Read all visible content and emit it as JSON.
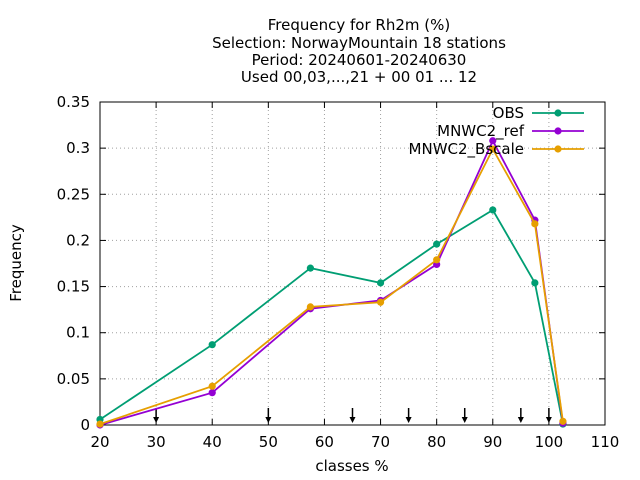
{
  "chart_data": {
    "type": "line",
    "title_lines": [
      "Frequency  for Rh2m (%)",
      "Selection: NorwayMountain     18 stations",
      "Period: 20240601-20240630",
      "Used 00,03,...,21 + 00 01 ... 12"
    ],
    "xlabel": "classes %",
    "ylabel": "Frequency",
    "xlim": [
      20,
      110
    ],
    "ylim": [
      0,
      0.35
    ],
    "x_ticks": [
      20,
      30,
      40,
      50,
      60,
      70,
      80,
      90,
      100,
      110
    ],
    "x_tick_labels": [
      "20",
      "30",
      "40",
      "50",
      "60",
      "70",
      "80",
      "90",
      "100",
      "110"
    ],
    "y_ticks": [
      0,
      0.05,
      0.1,
      0.15,
      0.2,
      0.25,
      0.3,
      0.35
    ],
    "y_tick_labels": [
      "0",
      "0.05",
      "0.1",
      "0.15",
      "0.2",
      "0.25",
      "0.3",
      "0.35"
    ],
    "class_limit_arrows": [
      30,
      50,
      65,
      75,
      85,
      95,
      100
    ],
    "legend_position": "top-right",
    "grid": true,
    "series": [
      {
        "name": "OBS",
        "color": "#009e73",
        "x": [
          20,
          40,
          57.5,
          70,
          80,
          90,
          97.5,
          102.5
        ],
        "values": [
          0.006,
          0.087,
          0.17,
          0.154,
          0.196,
          0.233,
          0.154,
          0.001
        ]
      },
      {
        "name": "MNWC2_ref",
        "color": "#9400d3",
        "x": [
          20,
          40,
          57.5,
          70,
          80,
          90,
          97.5,
          102.5
        ],
        "values": [
          0.0,
          0.035,
          0.126,
          0.135,
          0.174,
          0.308,
          0.222,
          0.002
        ]
      },
      {
        "name": "MNWC2_Bscale",
        "color": "#e69f00",
        "x": [
          20,
          40,
          57.5,
          70,
          80,
          90,
          97.5,
          102.5
        ],
        "values": [
          0.001,
          0.042,
          0.128,
          0.133,
          0.179,
          0.299,
          0.218,
          0.004
        ]
      }
    ]
  }
}
